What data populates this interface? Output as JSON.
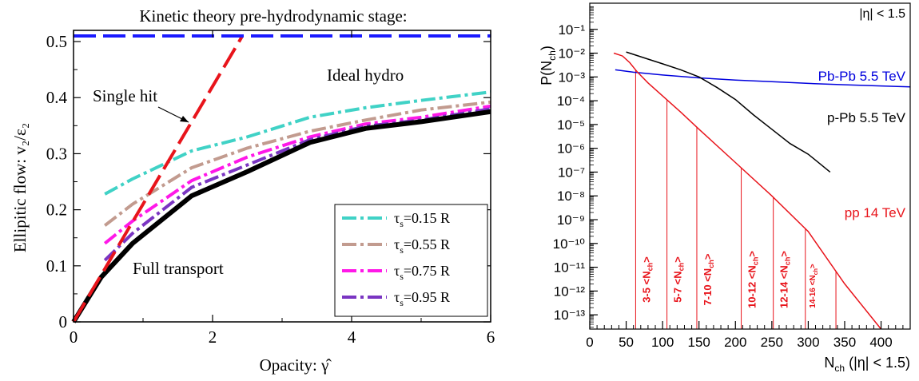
{
  "chart_data": [
    {
      "type": "line",
      "title": "Kinetic theory pre-hydrodynamic stage:",
      "xlabel": "Opacity: γ̂",
      "ylabel": "Ellipitic flow:  v₂/ε₂",
      "xlim": [
        0,
        6
      ],
      "ylim": [
        0,
        0.52
      ],
      "xticks": [
        0,
        2,
        4,
        6
      ],
      "xtick_labels": [
        "0",
        "2",
        "4",
        "6"
      ],
      "yticks": [
        0,
        0.1,
        0.2,
        0.3,
        0.4,
        0.5
      ],
      "ytick_labels": [
        "0",
        "0.1",
        "0.2",
        "0.3",
        "0.4",
        "0.5"
      ],
      "grid": false,
      "legend_position": "bottom-right",
      "annotations": [
        {
          "text": "Ideal hydro",
          "x": 3.65,
          "y": 0.478
        },
        {
          "text": "Single hit",
          "x": 0.28,
          "y": 0.43
        },
        {
          "text": "Full transport",
          "x": 0.85,
          "y": 0.075
        }
      ],
      "series": [
        {
          "name": "Ideal hydro",
          "color": "#1a1aff",
          "dash": "long",
          "x": [
            0,
            6
          ],
          "y": [
            0.51,
            0.51
          ],
          "legend": false
        },
        {
          "name": "Single hit",
          "color": "#e8141b",
          "dash": "long",
          "x": [
            0,
            0.5,
            1.0,
            1.5,
            2.0,
            2.42
          ],
          "y": [
            0,
            0.105,
            0.21,
            0.315,
            0.42,
            0.508
          ],
          "legend": false
        },
        {
          "name": "Full transport",
          "color": "#000000",
          "dash": "solid",
          "x": [
            0,
            0.4,
            0.85,
            1.7,
            2.5,
            3.4,
            4.2,
            5.0,
            6.0
          ],
          "y": [
            0,
            0.08,
            0.14,
            0.225,
            0.268,
            0.32,
            0.345,
            0.357,
            0.375
          ],
          "legend": false
        },
        {
          "name": "τs=0.15 R",
          "color": "#40d2c6",
          "dash": "dashdot",
          "x": [
            0.45,
            0.85,
            1.7,
            2.5,
            3.4,
            4.2,
            5.0,
            6.0
          ],
          "y": [
            0.228,
            0.255,
            0.305,
            0.33,
            0.365,
            0.382,
            0.395,
            0.41
          ],
          "legend": true
        },
        {
          "name": "τs=0.55 R",
          "color": "#c29b8f",
          "dash": "dashdot",
          "x": [
            0.45,
            0.85,
            1.7,
            2.5,
            3.4,
            4.2,
            5.0,
            6.0
          ],
          "y": [
            0.172,
            0.21,
            0.275,
            0.31,
            0.34,
            0.36,
            0.378,
            0.392
          ],
          "legend": true
        },
        {
          "name": "τs=0.75 R",
          "color": "#ff18e8",
          "dash": "dashdot",
          "x": [
            0.45,
            0.85,
            1.7,
            2.5,
            3.4,
            4.2,
            5.0,
            6.0
          ],
          "y": [
            0.14,
            0.18,
            0.252,
            0.294,
            0.33,
            0.353,
            0.365,
            0.385
          ],
          "legend": true
        },
        {
          "name": "τs=0.95 R",
          "color": "#7a35c2",
          "dash": "dashdot",
          "x": [
            0.45,
            0.85,
            1.7,
            2.5,
            3.4,
            4.2,
            5.0,
            6.0
          ],
          "y": [
            0.11,
            0.158,
            0.24,
            0.28,
            0.325,
            0.349,
            0.36,
            0.38
          ],
          "legend": true
        }
      ],
      "legend_entries": [
        {
          "tau": "τ",
          "sub": "s",
          "rest": "=0.15 R",
          "color": "#40d2c6"
        },
        {
          "tau": "τ",
          "sub": "s",
          "rest": "=0.55 R",
          "color": "#c29b8f"
        },
        {
          "tau": "τ",
          "sub": "s",
          "rest": "=0.75 R",
          "color": "#ff18e8"
        },
        {
          "tau": "τ",
          "sub": "s",
          "rest": "=0.95 R",
          "color": "#7a35c2"
        }
      ]
    },
    {
      "type": "line",
      "title": "",
      "xlabel": "N_ch (|η| < 1.5)",
      "ylabel": "P(N_ch)",
      "log_y": true,
      "xlim": [
        0,
        440
      ],
      "ylim_exp": [
        -13.6,
        0.1
      ],
      "xticks": [
        0,
        50,
        100,
        150,
        200,
        250,
        300,
        350,
        400
      ],
      "xtick_labels": [
        "0",
        "50",
        "100",
        "150",
        "200",
        "250",
        "300",
        "350",
        "400"
      ],
      "ytick_exponents": [
        -13,
        -12,
        -11,
        -10,
        -9,
        -8,
        -7,
        -6,
        -5,
        -4,
        -3,
        -2,
        -1
      ],
      "ytick_labels": [
        "10⁻¹³",
        "10⁻¹²",
        "10⁻¹¹",
        "10⁻¹⁰",
        "10⁻⁹",
        "10⁻⁸",
        "10⁻⁷",
        "10⁻⁶",
        "10⁻⁵",
        "10⁻⁴",
        "10⁻³",
        "10⁻²",
        "10⁻¹"
      ],
      "corner_label": "|η| < 1.5",
      "grid": false,
      "series": [
        {
          "name": "Pb-Pb 5.5 TeV",
          "color": "#0000dd",
          "x": [
            35,
            60,
            100,
            150,
            200,
            250,
            300,
            350,
            400,
            440
          ],
          "y_exp": [
            -2.7,
            -2.8,
            -2.92,
            -3.04,
            -3.13,
            -3.2,
            -3.27,
            -3.33,
            -3.38,
            -3.42
          ],
          "label_pos": [
            440,
            -3.15
          ]
        },
        {
          "name": "p-Pb 5.5 TeV",
          "color": "#000000",
          "x": [
            50,
            80,
            100,
            125,
            150,
            175,
            200,
            225,
            250,
            275,
            300,
            330
          ],
          "y_exp": [
            -1.95,
            -2.25,
            -2.45,
            -2.7,
            -3.0,
            -3.45,
            -3.95,
            -4.6,
            -5.2,
            -5.8,
            -6.25,
            -7.0
          ],
          "label_pos": [
            440,
            -4.9
          ]
        },
        {
          "name": "pp 14 TeV",
          "color": "#e8141b",
          "x": [
            33,
            45,
            55,
            65,
            80,
            100,
            125,
            150,
            200,
            250,
            300,
            350,
            400
          ],
          "y_exp": [
            -2.0,
            -2.12,
            -2.4,
            -2.78,
            -3.25,
            -3.8,
            -4.48,
            -5.2,
            -6.6,
            -8.0,
            -9.5,
            -11.7,
            -13.7
          ],
          "label_pos": [
            440,
            -8.9
          ]
        }
      ],
      "bins": [
        {
          "x": 63,
          "label": "3-5 <N_ch>"
        },
        {
          "x": 106,
          "label": "5-7 <N_ch>"
        },
        {
          "x": 147,
          "label": "7-10 <N_ch>"
        },
        {
          "x": 208,
          "label": "10-12 <N_ch>"
        },
        {
          "x": 252,
          "label": "12-14 <N_ch>"
        },
        {
          "x": 296,
          "label": "14-16 <N_ch>"
        },
        {
          "x": 338,
          "label": ""
        }
      ]
    }
  ]
}
